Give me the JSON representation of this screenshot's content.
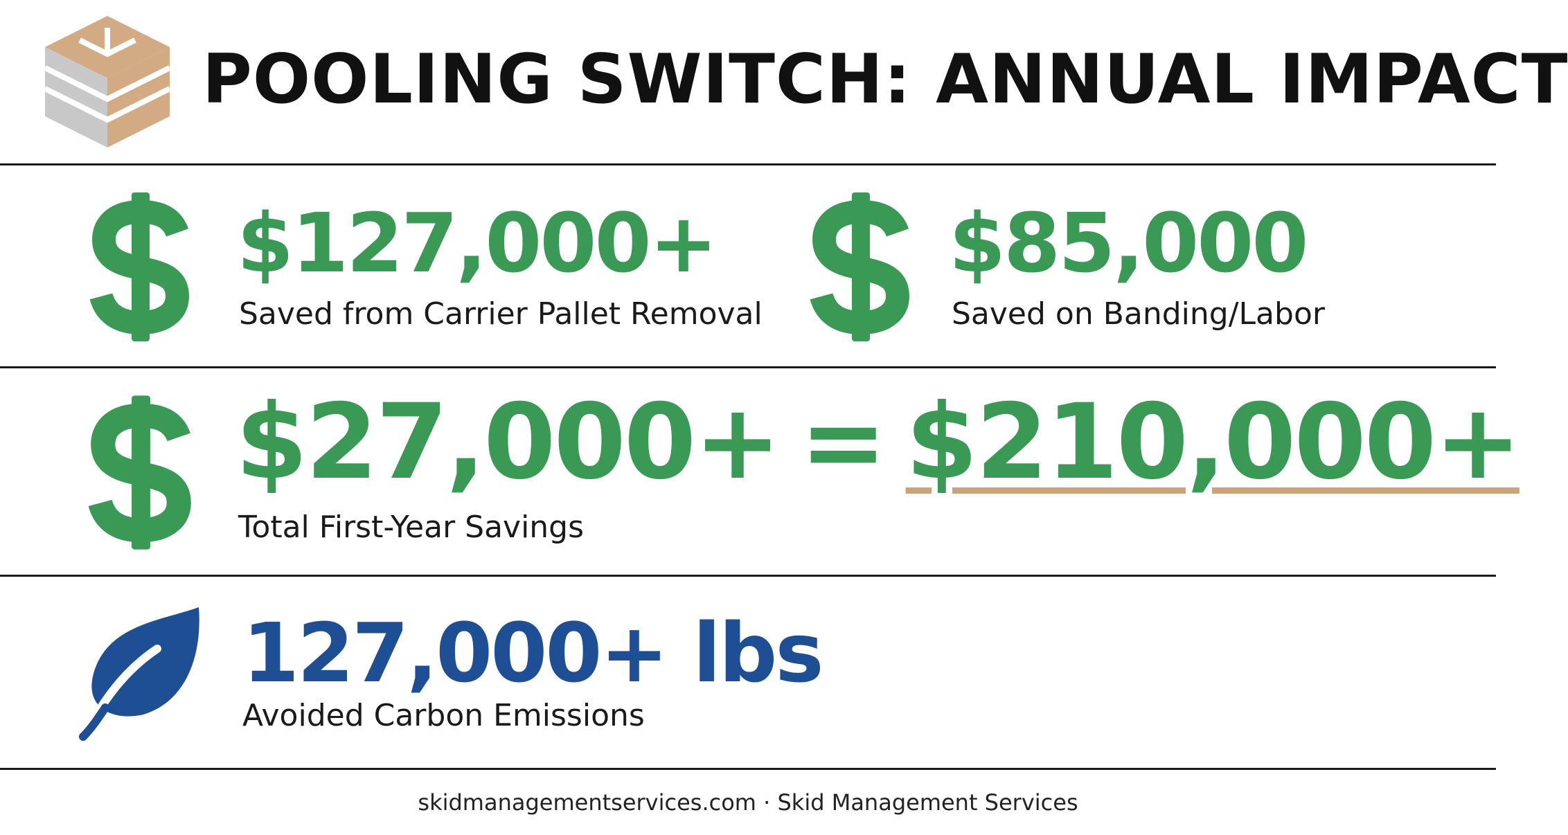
{
  "header": {
    "title": "POOLING SWITCH: ANNUAL IMPACT"
  },
  "stats": [
    {
      "value": "$127,000+",
      "label": "Saved from Carrier Pallet Removal"
    },
    {
      "value": "$85,000",
      "label": "Saved on Banding/Labor"
    }
  ],
  "total": {
    "value": "$27,000+",
    "equals": "=",
    "result": "$210,000+",
    "label": "Total First-Year Savings"
  },
  "carbon": {
    "value": "127,000+ lbs",
    "label": "Avoided Carbon Emissions"
  },
  "footer": "skidmanagementservices.com · Skid Management Services"
}
